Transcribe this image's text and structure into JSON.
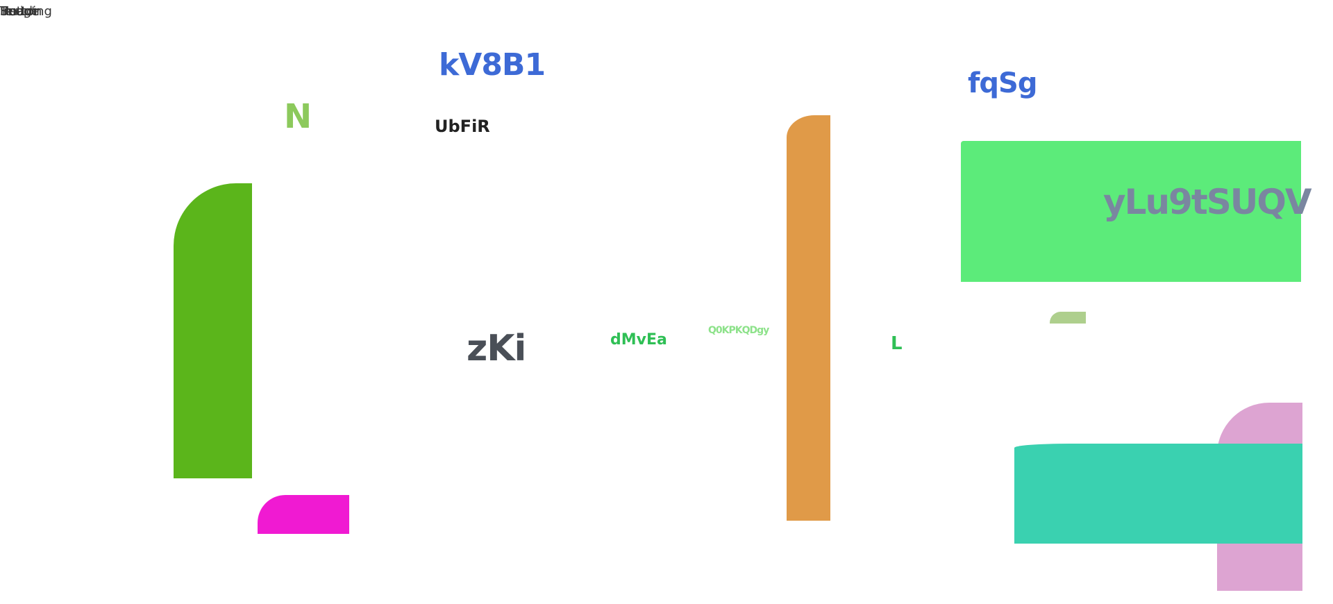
{
  "stray_labels": [
    "Script",
    "Image",
    "Heading",
    "Button",
    "Text"
  ],
  "labels": {
    "kv8b1": "kV8B1",
    "n": "N",
    "ubfir": "UbFiR",
    "fqsg": "fqSg",
    "ylu9": "yLu9tSUQV",
    "zki": "zKi",
    "dmvea": "dMvEa",
    "q0kp": "Q0KPKQDgy",
    "l": "L"
  },
  "colors": {
    "blue_text": "#3d6ad6",
    "green_tall": "#5bb51b",
    "magenta": "#f01ad2",
    "orange": "#e09a48",
    "green_box": "#5ceb7a",
    "sage": "#aecf8d",
    "pink": "#dda4d2",
    "teal": "#3ad1b0"
  }
}
